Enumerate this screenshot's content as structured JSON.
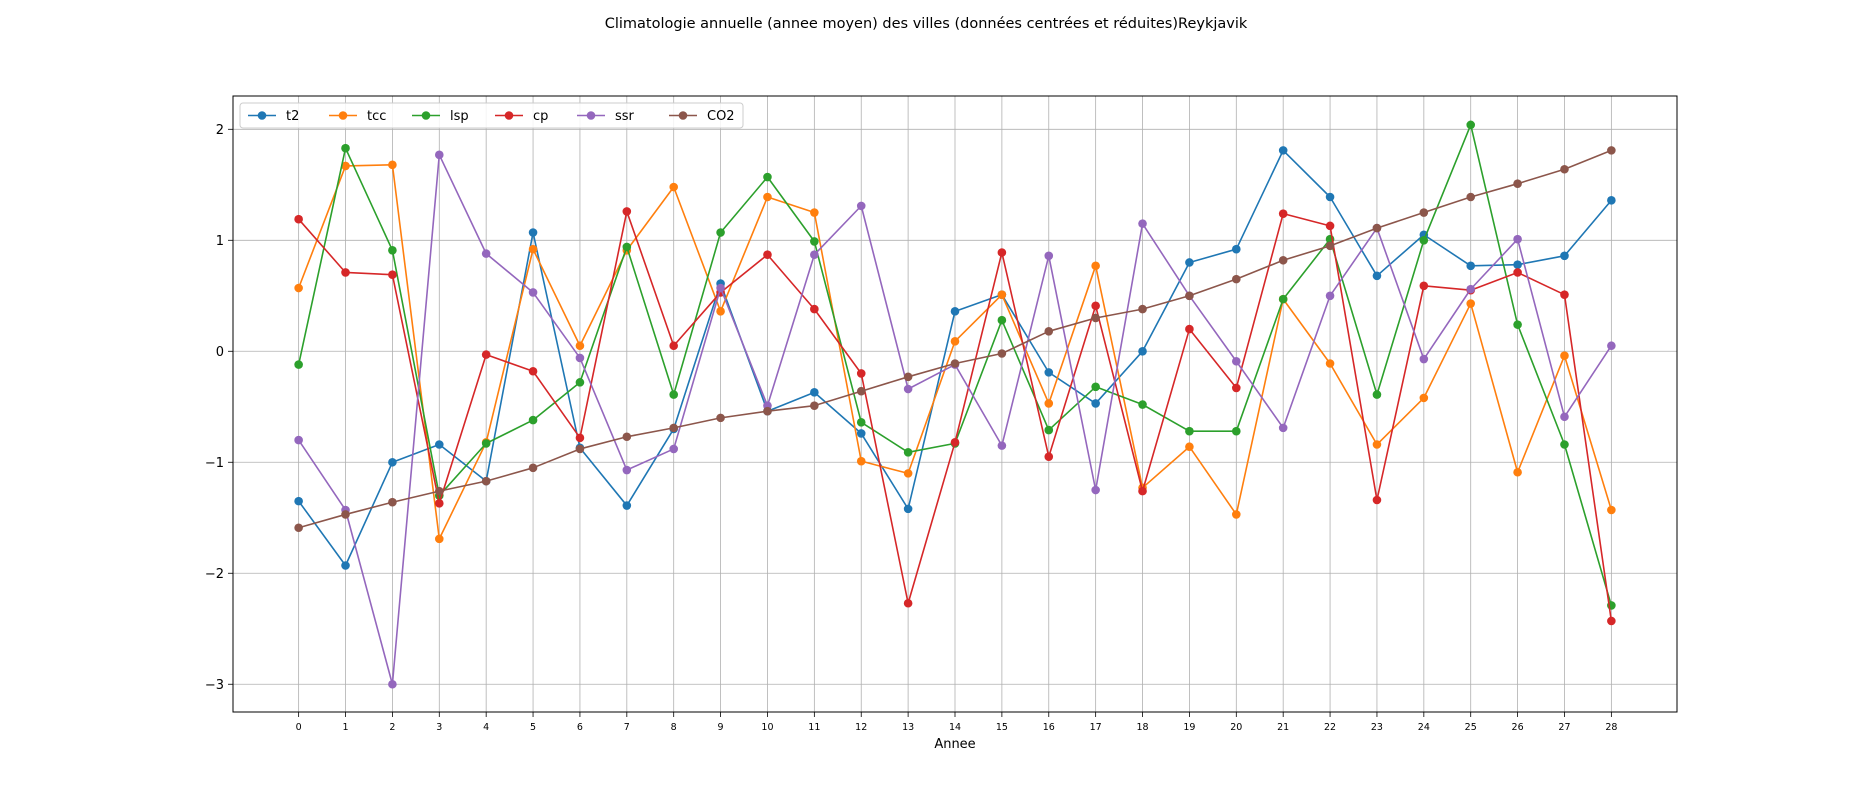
{
  "chart_data": {
    "type": "line",
    "title": "Climatologie annuelle (annee moyen) des villes (données centrées et réduites)Reykjavik",
    "xlabel": "Annee",
    "ylabel": "",
    "x": [
      0,
      1,
      2,
      3,
      4,
      5,
      6,
      7,
      8,
      9,
      10,
      11,
      12,
      13,
      14,
      15,
      16,
      17,
      18,
      19,
      20,
      21,
      22,
      23,
      24,
      25,
      26,
      27,
      28
    ],
    "xlim": [
      -1.4,
      29.4
    ],
    "ylim": [
      -3.25,
      2.3
    ],
    "yticks": [
      -3,
      -2,
      -1,
      0,
      1,
      2
    ],
    "ytick_labels": [
      "−3",
      "−2",
      "−1",
      "0",
      "1",
      "2"
    ],
    "grid": true,
    "legend_position": "upper-left",
    "legend_columns": 6,
    "series": [
      {
        "name": "t2",
        "color": "#1f77b4",
        "values": [
          -1.35,
          -1.93,
          -1.0,
          -0.84,
          -1.17,
          1.07,
          -0.87,
          -1.39,
          -0.7,
          0.61,
          -0.54,
          -0.37,
          -0.74,
          -1.42,
          0.36,
          0.51,
          -0.19,
          -0.47,
          0.0,
          0.8,
          0.92,
          1.81,
          1.39,
          0.68,
          1.05,
          0.77,
          0.78,
          0.86,
          1.36
        ]
      },
      {
        "name": "tcc",
        "color": "#ff7f0e",
        "values": [
          0.57,
          1.67,
          1.68,
          -1.69,
          -0.82,
          0.92,
          0.05,
          0.91,
          1.48,
          0.36,
          1.39,
          1.25,
          -0.99,
          -1.1,
          0.09,
          0.51,
          -0.47,
          0.77,
          -1.23,
          -0.86,
          -1.47,
          0.47,
          -0.11,
          -0.84,
          -0.42,
          0.43,
          -1.09,
          -0.04,
          -1.43
        ]
      },
      {
        "name": "lsp",
        "color": "#2ca02c",
        "values": [
          -0.12,
          1.83,
          0.91,
          -1.3,
          -0.83,
          -0.62,
          -0.28,
          0.94,
          -0.39,
          1.07,
          1.57,
          0.99,
          -0.64,
          -0.91,
          -0.83,
          0.28,
          -0.71,
          -0.32,
          -0.48,
          -0.72,
          -0.72,
          0.47,
          1.01,
          -0.39,
          1.0,
          2.04,
          0.24,
          -0.84,
          -2.29
        ]
      },
      {
        "name": "cp",
        "color": "#d62728",
        "values": [
          1.19,
          0.71,
          0.69,
          -1.37,
          -0.03,
          -0.18,
          -0.78,
          1.26,
          0.05,
          0.53,
          0.87,
          0.38,
          -0.2,
          -2.27,
          -0.82,
          0.89,
          -0.95,
          0.41,
          -1.26,
          0.2,
          -0.33,
          1.24,
          1.13,
          -1.34,
          0.59,
          0.55,
          0.71,
          0.51,
          -2.43
        ]
      },
      {
        "name": "ssr",
        "color": "#9467bd",
        "values": [
          -0.8,
          -1.43,
          -3.0,
          1.77,
          0.88,
          0.53,
          -0.06,
          -1.07,
          -0.88,
          0.57,
          -0.49,
          0.87,
          1.31,
          -0.34,
          -0.12,
          -0.85,
          0.86,
          -1.25,
          1.15,
          0.5,
          -0.09,
          -0.69,
          0.5,
          1.11,
          -0.07,
          0.56,
          1.01,
          -0.59,
          0.05
        ]
      },
      {
        "name": "CO2",
        "color": "#8c564b",
        "values": [
          -1.59,
          -1.47,
          -1.36,
          -1.26,
          -1.17,
          -1.05,
          -0.88,
          -0.77,
          -0.69,
          -0.6,
          -0.54,
          -0.49,
          -0.36,
          -0.23,
          -0.11,
          -0.02,
          0.18,
          0.3,
          0.38,
          0.5,
          0.65,
          0.82,
          0.95,
          1.11,
          1.25,
          1.39,
          1.51,
          1.64,
          1.81
        ]
      }
    ]
  }
}
